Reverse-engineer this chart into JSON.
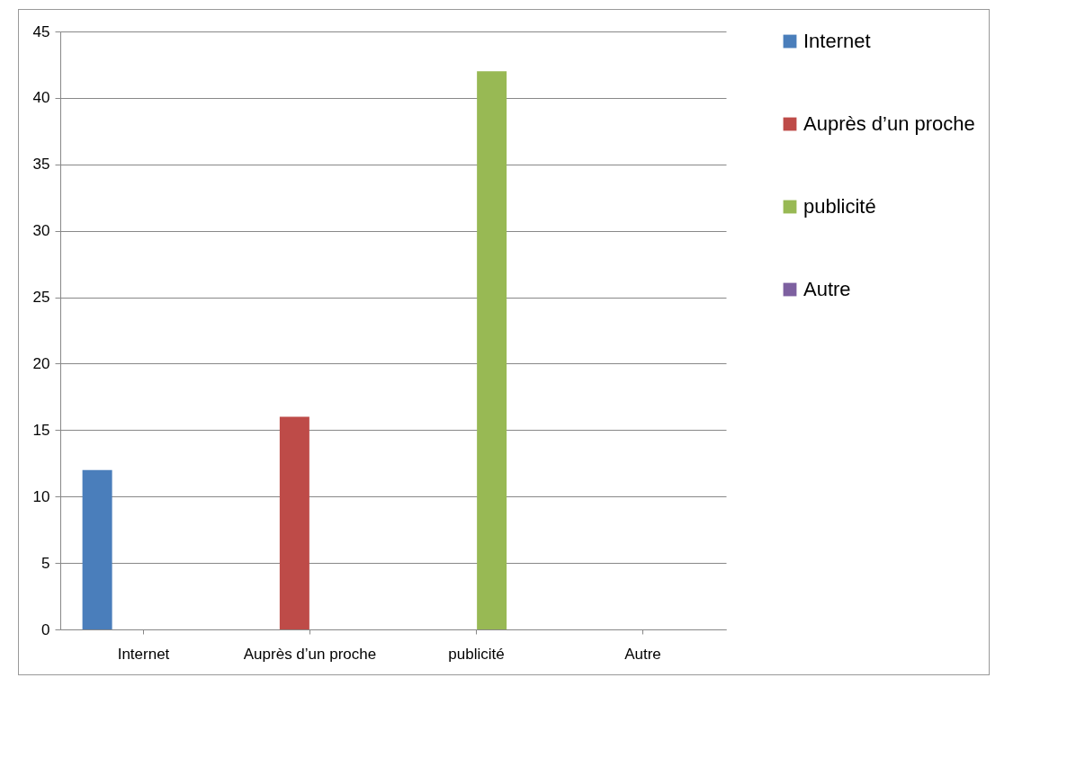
{
  "chart_data": {
    "type": "bar",
    "categories": [
      "Internet",
      "Auprès d’un proche",
      "publicité",
      "Autre"
    ],
    "series": [
      {
        "name": "Internet",
        "color": "#4a7ebb",
        "values": [
          12,
          null,
          null,
          null
        ]
      },
      {
        "name": "Auprès d’un proche",
        "color": "#be4b48",
        "values": [
          null,
          16,
          null,
          null
        ]
      },
      {
        "name": "publicité",
        "color": "#98b954",
        "values": [
          null,
          null,
          42,
          null
        ]
      },
      {
        "name": "Autre",
        "color": "#7d60a0",
        "values": [
          null,
          null,
          null,
          0
        ]
      }
    ],
    "ylim": [
      0,
      45
    ],
    "yticks": [
      0,
      5,
      10,
      15,
      20,
      25,
      30,
      35,
      40,
      45
    ],
    "grid": "y",
    "legend": "right"
  }
}
